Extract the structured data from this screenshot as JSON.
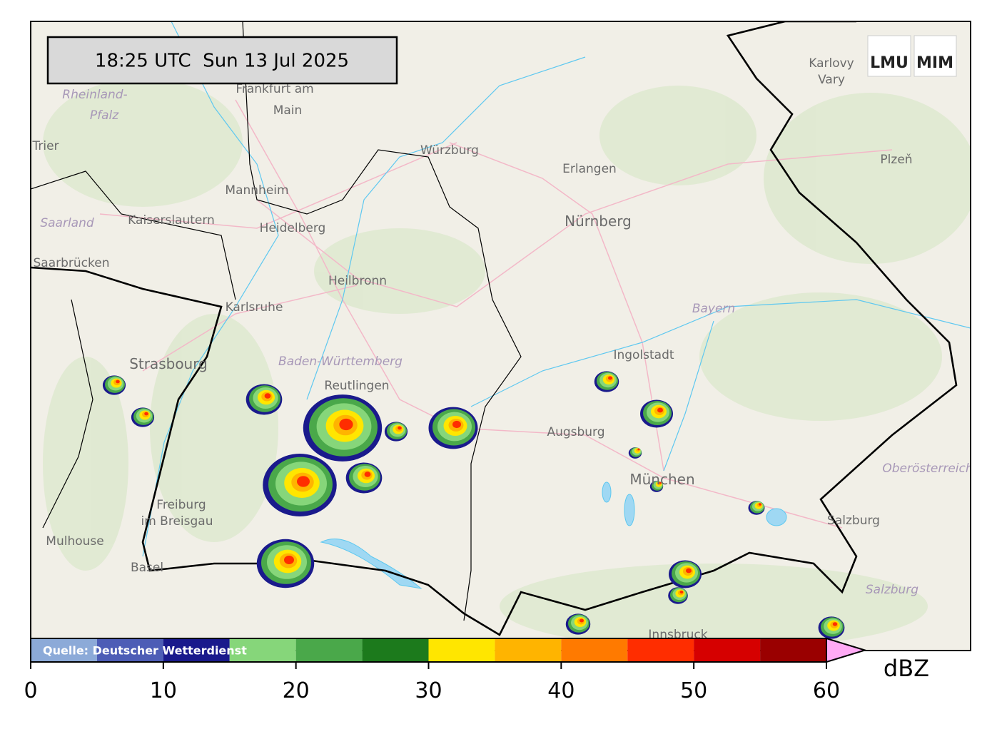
{
  "timestamp": "18:25 UTC  Sun 13 Jul 2025",
  "logos": [
    "LMU",
    "MIM"
  ],
  "source": "Quelle: Deutscher Wetterdienst",
  "places": [
    {
      "label": "Frankfurt am",
      "style": "city"
    },
    {
      "label": "Main",
      "style": "city"
    },
    {
      "label": "Rheinland-",
      "style": "region"
    },
    {
      "label": "Pfalz",
      "style": "region"
    },
    {
      "label": "Trier",
      "style": "city"
    },
    {
      "label": "Mannheim",
      "style": "city"
    },
    {
      "label": "Kaiserslautern",
      "style": "city"
    },
    {
      "label": "Heidelberg",
      "style": "city"
    },
    {
      "label": "Saarland",
      "style": "region"
    },
    {
      "label": "Saarbrücken",
      "style": "city"
    },
    {
      "label": "Heilbronn",
      "style": "city"
    },
    {
      "label": "Karlsruhe",
      "style": "city"
    },
    {
      "label": "Würzburg",
      "style": "city"
    },
    {
      "label": "Erlangen",
      "style": "city"
    },
    {
      "label": "Nürnberg",
      "style": "big"
    },
    {
      "label": "Karlovy",
      "style": "city"
    },
    {
      "label": "Vary",
      "style": "city"
    },
    {
      "label": "Plzeň",
      "style": "city"
    },
    {
      "label": "Bayern",
      "style": "region"
    },
    {
      "label": "Ingolstadt",
      "style": "city"
    },
    {
      "label": "Strasbourg",
      "style": "big"
    },
    {
      "label": "Baden-Württemberg",
      "style": "region"
    },
    {
      "label": "Reutlingen",
      "style": "city"
    },
    {
      "label": "Augsburg",
      "style": "city"
    },
    {
      "label": "München",
      "style": "big"
    },
    {
      "label": "Oberösterreich",
      "style": "region"
    },
    {
      "label": "Freiburg",
      "style": "city"
    },
    {
      "label": "im Breisgau",
      "style": "city"
    },
    {
      "label": "Mulhouse",
      "style": "city"
    },
    {
      "label": "Basel",
      "style": "city"
    },
    {
      "label": "Salzburg",
      "style": "city"
    },
    {
      "label": "Salzburg",
      "style": "region"
    },
    {
      "label": "Innsbruck",
      "style": "city"
    }
  ],
  "colorbar": {
    "bounds": [
      0,
      5,
      10,
      15,
      20,
      25,
      30,
      35,
      40,
      45,
      50,
      55,
      60
    ],
    "colors": [
      "#8caad8",
      "#4d5db6",
      "#1a1a8c",
      "#86d67a",
      "#4aa84a",
      "#1c7a1c",
      "#ffe600",
      "#ffb400",
      "#ff7a00",
      "#ff2d00",
      "#d60000",
      "#9a0000"
    ],
    "extend_color": "#ffaaf5",
    "lim": [
      0,
      60
    ],
    "ticks": [
      0,
      10,
      20,
      30,
      40,
      50,
      60
    ],
    "label": "dBZ"
  }
}
